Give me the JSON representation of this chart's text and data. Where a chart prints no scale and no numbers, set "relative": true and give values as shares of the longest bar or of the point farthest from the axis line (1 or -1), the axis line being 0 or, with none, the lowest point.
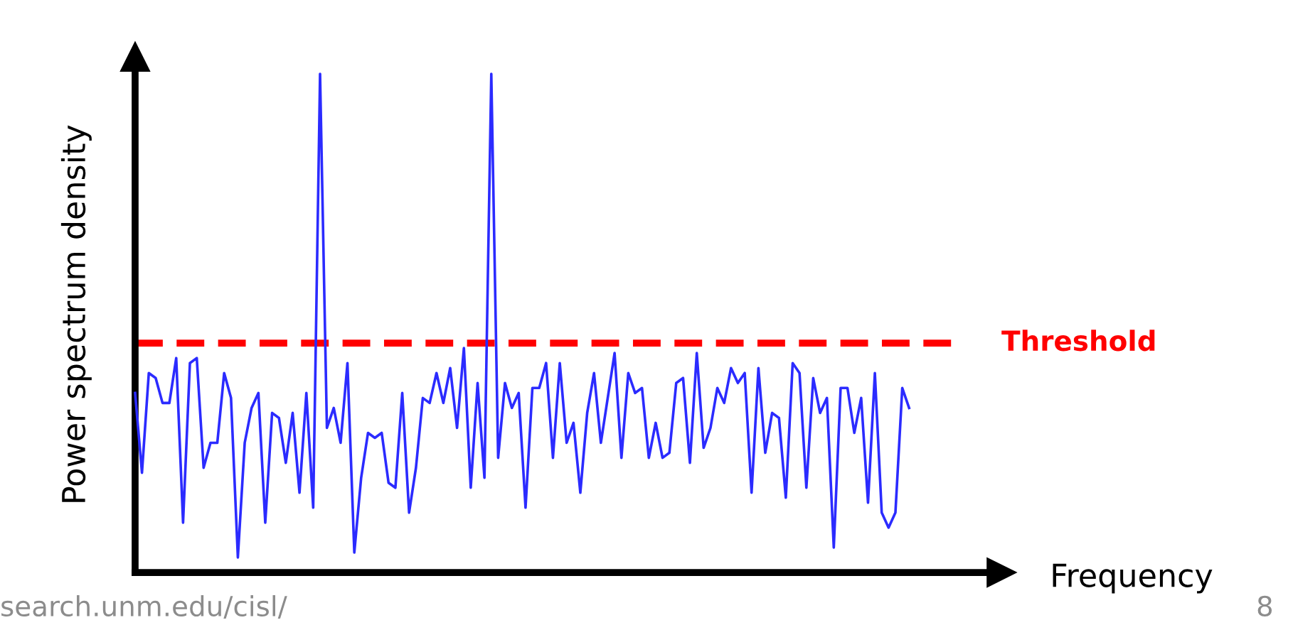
{
  "chart_data": {
    "type": "line",
    "relative": true,
    "xlabel": "Frequency",
    "ylabel": "Power spectrum density",
    "categories": [
      null,
      null,
      null,
      null,
      null,
      null,
      null,
      null,
      null,
      null,
      null,
      null,
      null,
      null,
      null,
      null,
      null,
      null,
      null,
      null,
      null,
      null,
      null,
      null,
      null,
      null,
      null,
      null,
      null,
      null,
      null,
      null,
      null,
      null,
      null,
      null,
      null,
      null,
      null,
      null,
      null,
      null,
      null,
      null,
      null,
      null,
      null,
      null,
      null,
      null,
      null,
      null,
      null,
      null,
      null,
      null,
      null,
      null,
      null,
      null,
      null,
      null,
      null,
      null,
      null,
      null,
      null,
      null,
      null,
      null,
      null,
      null,
      null,
      null,
      null,
      null,
      null,
      null,
      null,
      null,
      null,
      null,
      null,
      null,
      null,
      null,
      null,
      null,
      null,
      null,
      null,
      null,
      null,
      null,
      null,
      null,
      null,
      null,
      null,
      null,
      null,
      null,
      null,
      null,
      null,
      null,
      null,
      null,
      null,
      null,
      null,
      null,
      null,
      null
    ],
    "series": [
      {
        "color": "#2b2bff",
        "values": [
          0.36,
          0.2,
          0.4,
          0.39,
          0.34,
          0.34,
          0.43,
          0.1,
          0.42,
          0.43,
          0.21,
          0.26,
          0.26,
          0.4,
          0.35,
          0.03,
          0.26,
          0.33,
          0.36,
          0.1,
          0.32,
          0.31,
          0.22,
          0.32,
          0.16,
          0.36,
          0.13,
          1.0,
          0.29,
          0.33,
          0.26,
          0.42,
          0.04,
          0.19,
          0.28,
          0.27,
          0.28,
          0.18,
          0.17,
          0.36,
          0.12,
          0.21,
          0.35,
          0.34,
          0.4,
          0.34,
          0.41,
          0.29,
          0.45,
          0.17,
          0.38,
          0.19,
          1.0,
          0.23,
          0.38,
          0.33,
          0.36,
          0.13,
          0.37,
          0.37,
          0.42,
          0.23,
          0.42,
          0.26,
          0.3,
          0.16,
          0.32,
          0.4,
          0.26,
          0.35,
          0.44,
          0.23,
          0.4,
          0.36,
          0.37,
          0.23,
          0.3,
          0.23,
          0.24,
          0.38,
          0.39,
          0.22,
          0.44,
          0.25,
          0.29,
          0.37,
          0.34,
          0.41,
          0.38,
          0.4,
          0.16,
          0.41,
          0.24,
          0.32,
          0.31,
          0.15,
          0.42,
          0.4,
          0.17,
          0.39,
          0.32,
          0.35,
          0.05,
          0.37,
          0.37,
          0.28,
          0.35,
          0.14,
          0.4,
          0.12,
          0.09,
          0.12,
          0.37,
          0.33
        ]
      }
    ],
    "ref_lines": [
      {
        "axis": "y",
        "value": 0.46,
        "label": "Threshold",
        "color": "#ff0000",
        "line_style": "dashed"
      }
    ],
    "line_style": "solid",
    "marker": "none",
    "annotations": [
      "search.unm.edu/cisl/",
      "8"
    ]
  }
}
